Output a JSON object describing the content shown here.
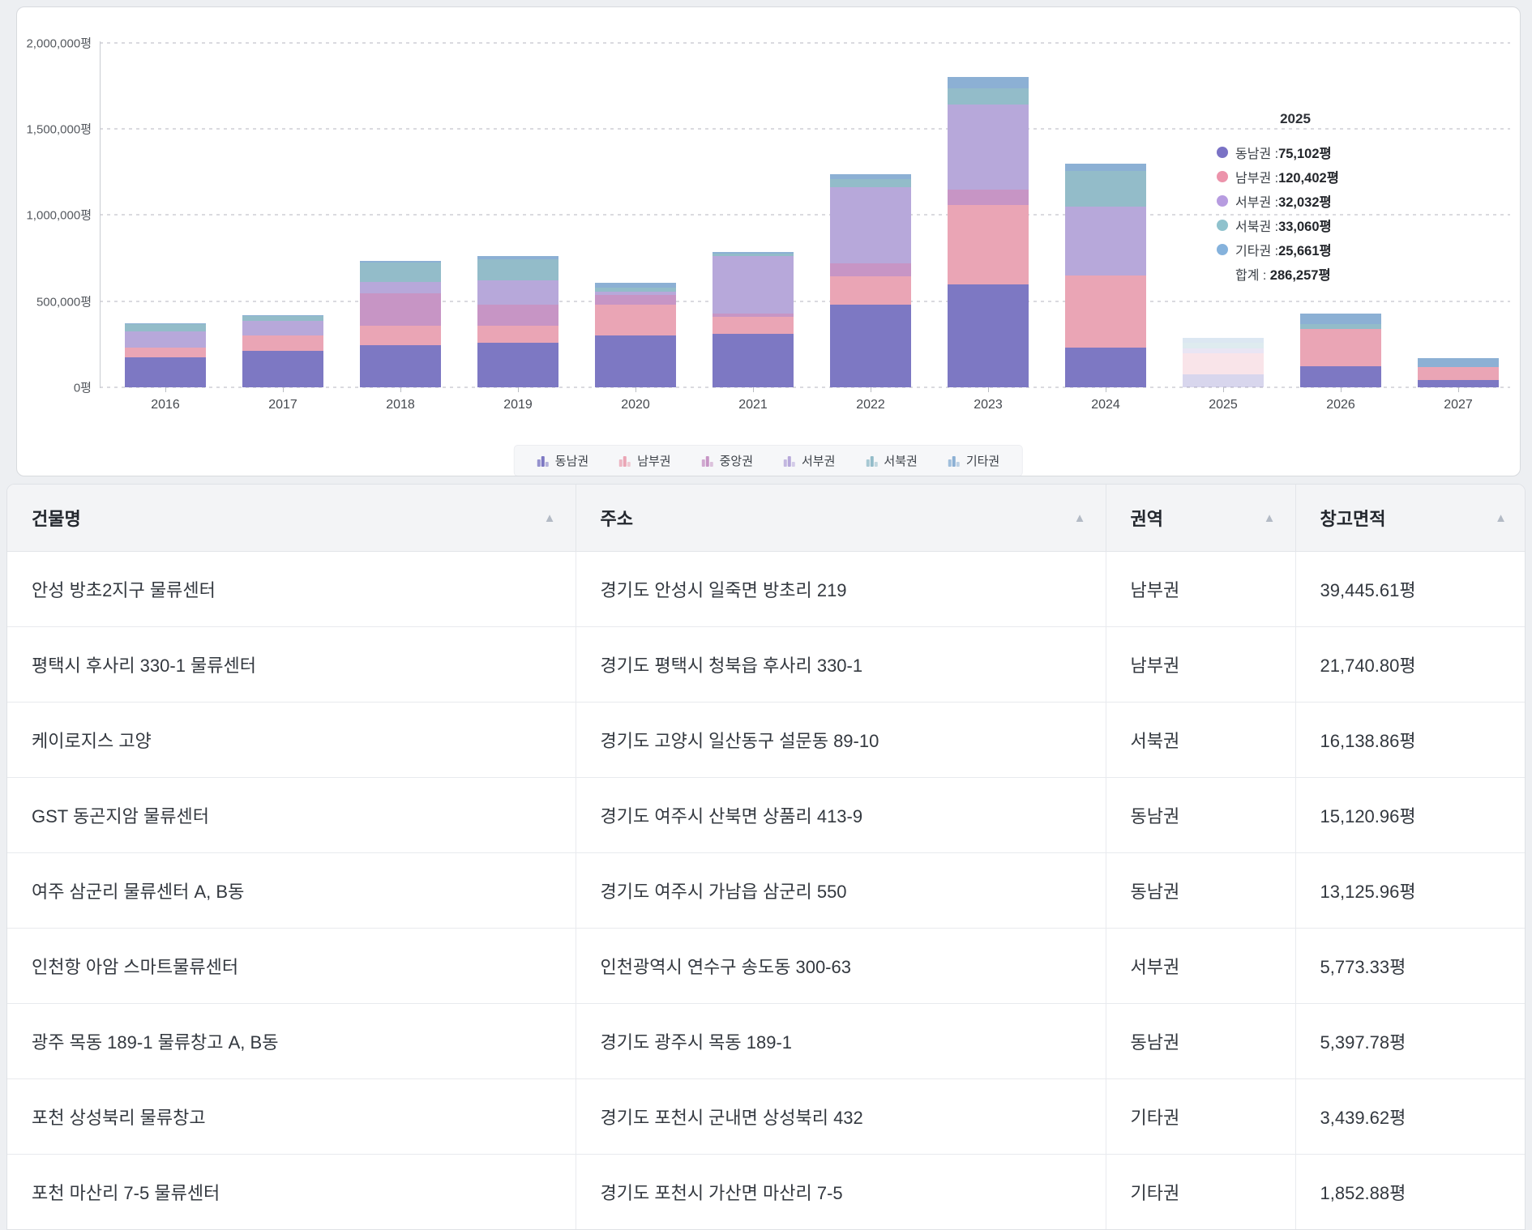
{
  "chart_data": {
    "type": "bar",
    "stacked": true,
    "title": "",
    "xlabel": "",
    "ylabel": "",
    "unit": "평",
    "ylim": [
      0,
      2000000
    ],
    "y_axis_labels": [
      "2,000,000평",
      "1,500,000평",
      "1,000,000평",
      "500,000평",
      "0평"
    ],
    "categories": [
      "2016",
      "2017",
      "2018",
      "2019",
      "2020",
      "2021",
      "2022",
      "2023",
      "2024",
      "2025",
      "2026",
      "2027"
    ],
    "highlighted_category": "2025",
    "series": [
      {
        "name": "동남권",
        "color": "#7d78c3",
        "values": [
          175000,
          214000,
          246000,
          257000,
          299000,
          310000,
          482000,
          599000,
          229000,
          75102,
          122000,
          44000
        ]
      },
      {
        "name": "남부권",
        "color": "#eaa5b5",
        "values": [
          55000,
          86000,
          110000,
          101000,
          181000,
          100000,
          164000,
          461000,
          422000,
          120402,
          219000,
          74000
        ]
      },
      {
        "name": "중앙권",
        "color": "#c795c5",
        "values": [
          0,
          0,
          188000,
          121000,
          58000,
          20000,
          75000,
          86000,
          0,
          0,
          0,
          0
        ]
      },
      {
        "name": "서부권",
        "color": "#b7a8da",
        "values": [
          95000,
          86000,
          69000,
          141000,
          15000,
          330000,
          441000,
          498000,
          396000,
          32032,
          0,
          0
        ]
      },
      {
        "name": "서북권",
        "color": "#93bcc9",
        "values": [
          40000,
          27000,
          111000,
          122000,
          27000,
          18000,
          47000,
          94000,
          207000,
          33060,
          27000,
          0
        ]
      },
      {
        "name": "기타권",
        "color": "#8cb0d4",
        "values": [
          5000,
          5000,
          8000,
          19000,
          25000,
          10000,
          28000,
          63000,
          44000,
          25661,
          62000,
          52000
        ]
      }
    ],
    "legend_position": "bottom",
    "grid": true
  },
  "tooltip": {
    "title": "2025",
    "items": [
      {
        "label": "동남권",
        "value": "75,102평",
        "color": "#7a72c5"
      },
      {
        "label": "남부권",
        "value": "120,402평",
        "color": "#ec93ab"
      },
      {
        "label": "서부권",
        "value": "32,032평",
        "color": "#b79ce0"
      },
      {
        "label": "서북권",
        "value": "33,060평",
        "color": "#8fc2cd"
      },
      {
        "label": "기타권",
        "value": "25,661평",
        "color": "#85b2dc"
      }
    ],
    "total_label": "합계",
    "total_value": "286,257평"
  },
  "table": {
    "columns": [
      "건물명",
      "주소",
      "권역",
      "창고면적"
    ],
    "sort_icon": "▲",
    "rows": [
      {
        "name": "안성 방초2지구 물류센터",
        "address": "경기도 안성시 일죽면 방초리 219",
        "region": "남부권",
        "area": "39,445.61평"
      },
      {
        "name": "평택시 후사리 330-1 물류센터",
        "address": "경기도 평택시 청북읍 후사리 330-1",
        "region": "남부권",
        "area": "21,740.80평"
      },
      {
        "name": "케이로지스 고양",
        "address": "경기도 고양시 일산동구 설문동 89-10",
        "region": "서북권",
        "area": "16,138.86평"
      },
      {
        "name": "GST 동곤지암 물류센터",
        "address": "경기도 여주시 산북면 상품리 413-9",
        "region": "동남권",
        "area": "15,120.96평"
      },
      {
        "name": "여주 삼군리 물류센터 A, B동",
        "address": "경기도 여주시 가남읍 삼군리 550",
        "region": "동남권",
        "area": "13,125.96평"
      },
      {
        "name": "인천항 아암 스마트물류센터",
        "address": "인천광역시 연수구 송도동 300-63",
        "region": "서부권",
        "area": "5,773.33평"
      },
      {
        "name": "광주 목동 189-1 물류창고 A, B동",
        "address": "경기도 광주시 목동 189-1",
        "region": "동남권",
        "area": "5,397.78평"
      },
      {
        "name": "포천 상성북리 물류창고",
        "address": "경기도 포천시 군내면 상성북리 432",
        "region": "기타권",
        "area": "3,439.62평"
      },
      {
        "name": "포천 마산리 7-5 물류센터",
        "address": "경기도 포천시 가산면 마산리 7-5",
        "region": "기타권",
        "area": "1,852.88평"
      }
    ]
  }
}
